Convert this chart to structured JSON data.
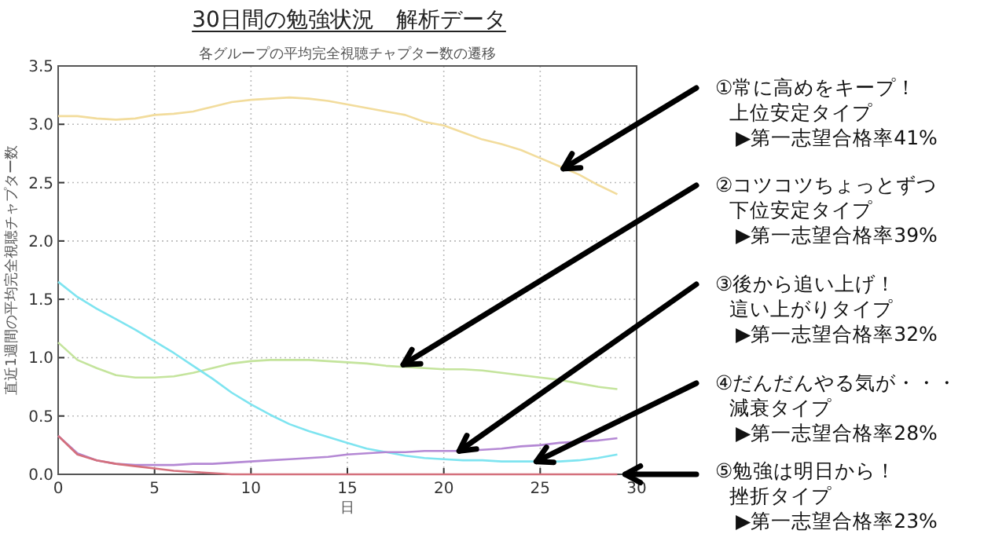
{
  "chart_data": {
    "type": "line",
    "title": "30日間の勉強状況　解析データ",
    "subtitle": "各グループの平均完全視聴チャプター数の遷移",
    "xlabel": "日",
    "ylabel": "直近1週間の平均完全視聴チャプター数",
    "x": [
      0,
      1,
      2,
      3,
      4,
      5,
      6,
      7,
      8,
      9,
      10,
      11,
      12,
      13,
      14,
      15,
      16,
      17,
      18,
      19,
      20,
      21,
      22,
      23,
      24,
      25,
      26,
      27,
      28,
      29
    ],
    "series": [
      {
        "color": "#f2dc9c",
        "values": [
          3.07,
          3.07,
          3.05,
          3.04,
          3.05,
          3.08,
          3.09,
          3.11,
          3.15,
          3.19,
          3.21,
          3.22,
          3.23,
          3.22,
          3.2,
          3.17,
          3.14,
          3.11,
          3.08,
          3.02,
          2.99,
          2.93,
          2.87,
          2.83,
          2.78,
          2.71,
          2.64,
          2.57,
          2.48,
          2.4
        ]
      },
      {
        "color": "#c4e49c",
        "values": [
          1.13,
          0.98,
          0.91,
          0.85,
          0.83,
          0.83,
          0.84,
          0.87,
          0.91,
          0.95,
          0.97,
          0.98,
          0.98,
          0.98,
          0.97,
          0.96,
          0.95,
          0.93,
          0.92,
          0.91,
          0.9,
          0.9,
          0.89,
          0.87,
          0.85,
          0.83,
          0.81,
          0.78,
          0.75,
          0.73
        ]
      },
      {
        "color": "#7ee4f0",
        "values": [
          1.65,
          1.52,
          1.42,
          1.33,
          1.24,
          1.14,
          1.04,
          0.93,
          0.82,
          0.7,
          0.6,
          0.51,
          0.43,
          0.37,
          0.32,
          0.27,
          0.22,
          0.19,
          0.16,
          0.14,
          0.13,
          0.12,
          0.12,
          0.11,
          0.11,
          0.11,
          0.11,
          0.12,
          0.14,
          0.17
        ]
      },
      {
        "color": "#b488d4",
        "values": [
          0.33,
          0.18,
          0.12,
          0.09,
          0.08,
          0.08,
          0.08,
          0.09,
          0.09,
          0.1,
          0.11,
          0.12,
          0.13,
          0.14,
          0.15,
          0.17,
          0.18,
          0.19,
          0.19,
          0.2,
          0.2,
          0.2,
          0.21,
          0.22,
          0.24,
          0.25,
          0.27,
          0.28,
          0.29,
          0.31
        ]
      },
      {
        "color": "#d4707c",
        "values": [
          0.33,
          0.17,
          0.12,
          0.09,
          0.07,
          0.05,
          0.03,
          0.02,
          0.01,
          0,
          0,
          0,
          0,
          0,
          0,
          0,
          0,
          0,
          0,
          0,
          0,
          0,
          0,
          0,
          0,
          0,
          0,
          0,
          0,
          0
        ]
      }
    ],
    "xlim": [
      0,
      30
    ],
    "ylim": [
      0,
      3.5
    ],
    "xticks": [
      0,
      5,
      10,
      15,
      20,
      25,
      30
    ],
    "yticks": [
      {
        "value": 0,
        "label": "0.0"
      },
      {
        "value": 0.5,
        "label": "0.5"
      },
      {
        "value": 1,
        "label": "1.0"
      },
      {
        "value": 1.5,
        "label": "1.5"
      },
      {
        "value": 2,
        "label": "2.0"
      },
      {
        "value": 2.5,
        "label": "2.5"
      },
      {
        "value": 3,
        "label": "3.0"
      },
      {
        "value": 3.5,
        "label": "3.5"
      }
    ],
    "grid": true,
    "annotations": [
      {
        "text": "①常に高めをキープ！",
        "x": 26.2,
        "y": 2.62
      },
      "上位安定タイプ",
      "▶第一志望合格率41%",
      {
        "text": "②コツコツちょっとずつ",
        "x": 17.9,
        "y": 0.94
      },
      "下位安定タイプ",
      "▶第一志望合格率39%",
      {
        "text": "③後から追い上げ！",
        "x": 20.8,
        "y": 0.2
      },
      "這い上がりタイプ",
      "▶第一志望合格率32%",
      {
        "text": "④だんだんやる気が・・・",
        "x": 24.8,
        "y": 0.11
      },
      "減衰タイプ",
      "▶第一志望合格率28%",
      {
        "text": "⑤勉強は明日から！",
        "x": 29,
        "y": 0
      },
      "挫折タイプ",
      "▶第一志望合格率23%"
    ]
  }
}
